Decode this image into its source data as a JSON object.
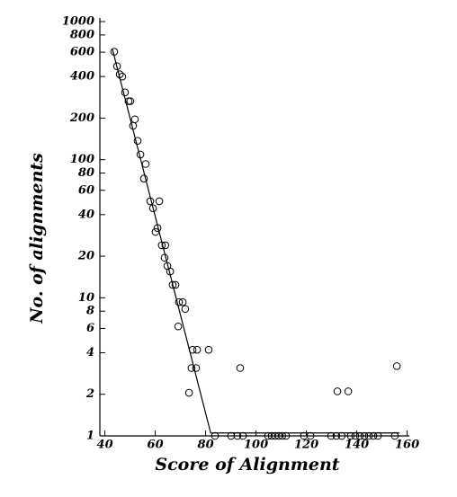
{
  "chart_data": {
    "type": "scatter",
    "xlabel": "Score of Alignment",
    "ylabel": "No. of alignments",
    "xlim": [
      38,
      160
    ],
    "xticks": [
      40,
      60,
      80,
      100,
      120,
      140,
      160
    ],
    "ylim": [
      1,
      1000
    ],
    "yscale": "log",
    "yticks": [
      1,
      2,
      4,
      6,
      8,
      10,
      20,
      40,
      60,
      80,
      100,
      200,
      400,
      600,
      800,
      1000
    ],
    "color": "#000000",
    "x": [
      43.7,
      44.8,
      45.9,
      46.9,
      48,
      49.4,
      50.1,
      51.2,
      51.9,
      53,
      54.1,
      56.2,
      55.5,
      58,
      59.1,
      61.6,
      60.1,
      60.9,
      62.6,
      64,
      63.7,
      64.8,
      65.9,
      66.9,
      68,
      69.4,
      70.9,
      71.9,
      69.1,
      74.8,
      76.6,
      81.2,
      74.4,
      76.2,
      73.4,
      93.7,
      83.7,
      90.1,
      92.6,
      94.8,
      104.8,
      106.2,
      107.6,
      109,
      110.4,
      111.9,
      119,
      121.6,
      129.8,
      131.9,
      134,
      137.6,
      139.4,
      141.2,
      143,
      144.8,
      146.6,
      148.4,
      155.1,
      132.3,
      136.6,
      155.9
    ],
    "values": [
      605,
      475,
      415,
      400,
      307,
      265,
      265,
      176,
      196,
      137,
      109,
      93,
      73,
      50,
      44.5,
      50,
      30,
      32,
      24,
      24,
      19.5,
      17,
      15.5,
      12.4,
      12.4,
      9.3,
      9.3,
      8.3,
      6.2,
      4.2,
      4.2,
      4.2,
      3.1,
      3.1,
      2.05,
      3.1,
      1,
      1,
      1,
      1,
      1,
      1,
      1,
      1,
      1,
      1,
      1,
      1,
      1,
      1,
      1,
      1,
      1,
      1,
      1,
      1,
      1,
      1,
      1,
      2.1,
      2.1,
      3.2
    ],
    "fit_line": {
      "x": [
        43,
        82,
        157
      ],
      "y": [
        630,
        1.05,
        1.05
      ]
    }
  }
}
